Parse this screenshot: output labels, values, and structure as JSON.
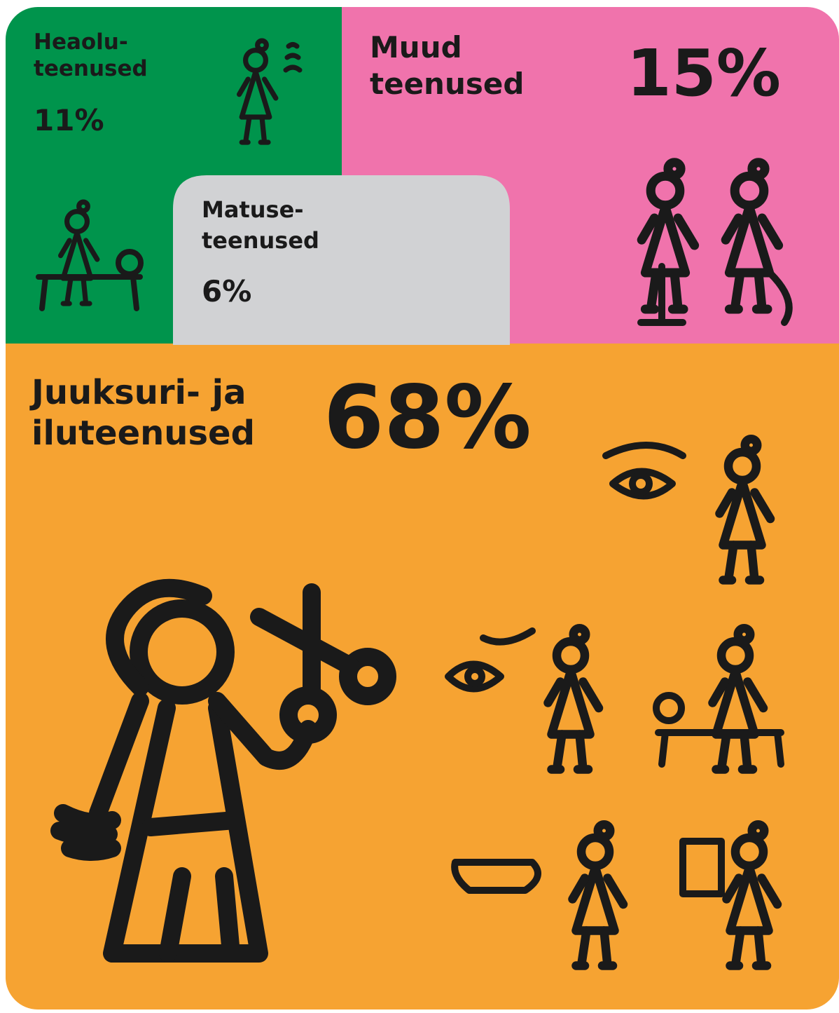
{
  "tiles": [
    {
      "label": [
        "Heaolu-",
        "teenused"
      ],
      "value": "11%"
    },
    {
      "label": [
        "Muud",
        "teenused"
      ],
      "value": "15%"
    },
    {
      "label": [
        "Matuse-",
        "teenused"
      ],
      "value": "6%"
    },
    {
      "label": [
        "Juuksuri- ja",
        "iluteenused"
      ],
      "value": "68%"
    }
  ]
}
